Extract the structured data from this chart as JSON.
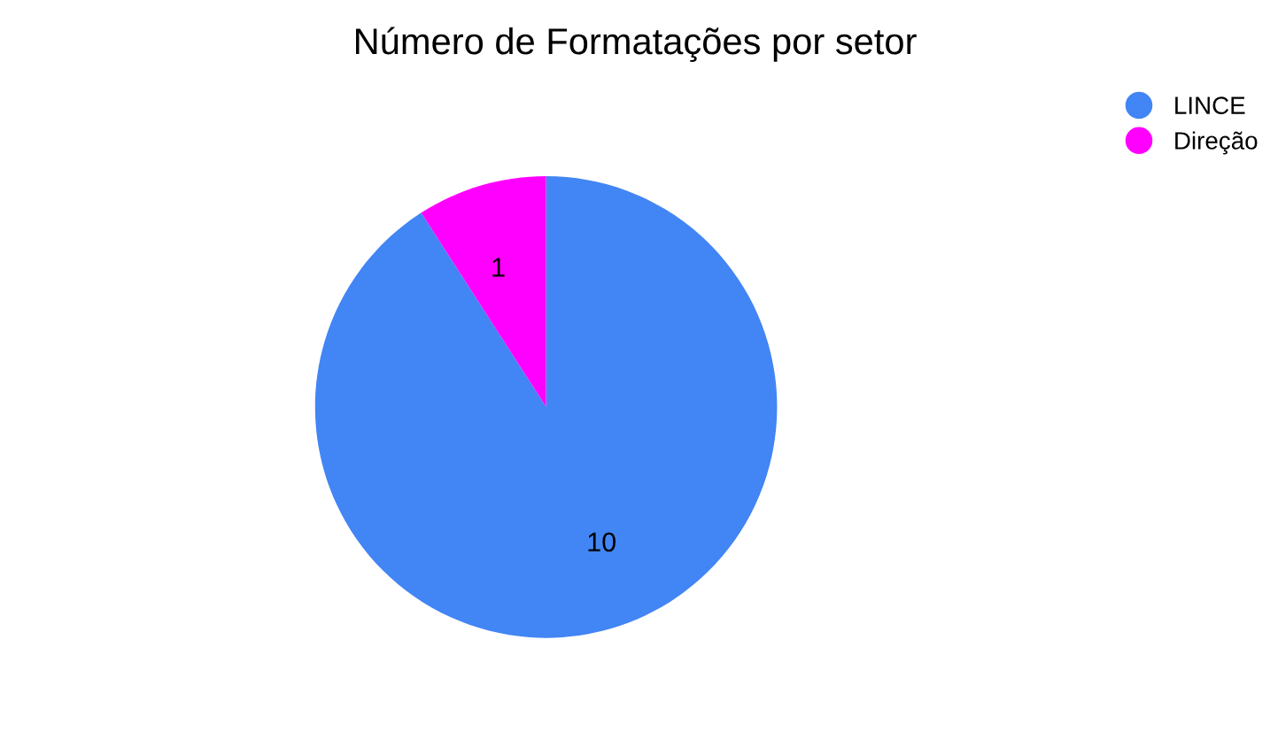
{
  "chart_data": {
    "type": "pie",
    "title": "Número de Formatações por setor",
    "categories": [
      "LINCE",
      "Direção"
    ],
    "values": [
      10,
      1
    ],
    "colors": [
      "#4285f4",
      "#ff00ff"
    ],
    "data_labels": true,
    "legend": "top right"
  }
}
